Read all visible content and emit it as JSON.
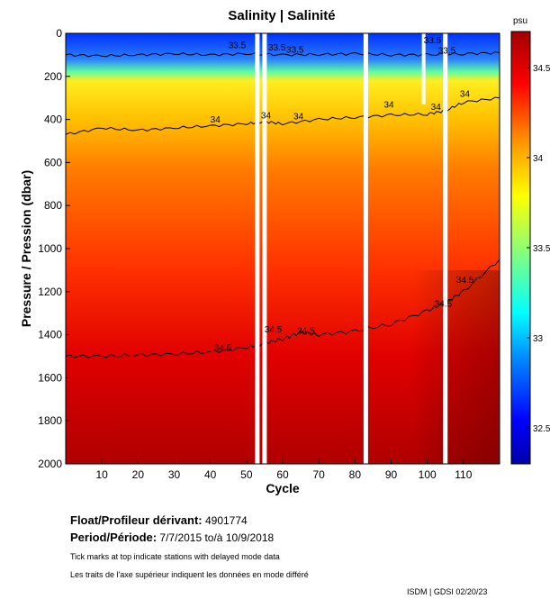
{
  "chart_data": {
    "type": "heatmap",
    "title": "Salinity | Salinité",
    "xlabel": "Cycle",
    "ylabel": "Pressure / Pression (dbar)",
    "xlim": [
      0,
      120
    ],
    "ylim": [
      2000,
      0
    ],
    "x_ticks": [
      10,
      20,
      30,
      40,
      50,
      60,
      70,
      80,
      90,
      100,
      110
    ],
    "y_ticks": [
      0,
      200,
      400,
      600,
      800,
      1000,
      1200,
      1400,
      1600,
      1800,
      2000
    ],
    "colorbar": {
      "unit": "psu",
      "range": [
        32.3,
        34.7
      ],
      "ticks": [
        {
          "value": 34.5,
          "label": "34.5"
        },
        {
          "value": 34.0,
          "label": "34"
        },
        {
          "value": 33.5,
          "label": "33.5"
        },
        {
          "value": 33.0,
          "label": "33"
        },
        {
          "value": 32.5,
          "label": "32.5"
        }
      ]
    },
    "missing_cycles": [
      53,
      55,
      83,
      105
    ],
    "partial_gap": {
      "cycle": 99,
      "from_dbar": 0,
      "to_dbar": 330
    },
    "contours": [
      {
        "level": 33.5,
        "label": "33.5",
        "x": [
          0,
          10,
          20,
          30,
          40,
          50,
          60,
          70,
          80,
          90,
          100,
          110,
          120
        ],
        "y": [
          100,
          105,
          100,
          95,
          100,
          95,
          100,
          98,
          95,
          100,
          100,
          95,
          90
        ]
      },
      {
        "level": 34.0,
        "label": "34",
        "x": [
          0,
          10,
          20,
          30,
          40,
          50,
          55,
          60,
          70,
          80,
          90,
          100,
          105,
          110,
          120
        ],
        "y": [
          470,
          440,
          450,
          440,
          430,
          420,
          410,
          420,
          400,
          390,
          380,
          375,
          360,
          320,
          300
        ]
      },
      {
        "level": 34.5,
        "label": "34.5",
        "x": [
          0,
          10,
          20,
          30,
          40,
          50,
          55,
          60,
          65,
          70,
          80,
          90,
          100,
          105,
          110,
          120
        ],
        "y": [
          1500,
          1500,
          1495,
          1490,
          1480,
          1460,
          1440,
          1420,
          1390,
          1400,
          1385,
          1350,
          1290,
          1250,
          1200,
          1050
        ]
      }
    ],
    "contour_labels": [
      {
        "text": "33.5",
        "x": 45,
        "y": 70
      },
      {
        "text": "33.5",
        "x": 56,
        "y": 80
      },
      {
        "text": "33.5",
        "x": 61,
        "y": 90
      },
      {
        "text": "33.5",
        "x": 99,
        "y": 45
      },
      {
        "text": "33.5",
        "x": 103,
        "y": 95
      },
      {
        "text": "34",
        "x": 40,
        "y": 415
      },
      {
        "text": "34",
        "x": 54,
        "y": 395
      },
      {
        "text": "34",
        "x": 63,
        "y": 400
      },
      {
        "text": "34",
        "x": 88,
        "y": 345
      },
      {
        "text": "34",
        "x": 101,
        "y": 355
      },
      {
        "text": "34",
        "x": 109,
        "y": 295
      },
      {
        "text": "34.5",
        "x": 41,
        "y": 1475
      },
      {
        "text": "34.5",
        "x": 55,
        "y": 1390
      },
      {
        "text": "34.5",
        "x": 64,
        "y": 1395
      },
      {
        "text": "34.5",
        "x": 102,
        "y": 1270
      },
      {
        "text": "34.5",
        "x": 108,
        "y": 1160
      }
    ]
  },
  "info": {
    "float_label": "Float/Profileur dérivant:",
    "float_id": "4901774",
    "period_label": "Period/Période:",
    "period_value": "7/7/2015  to/à  10/9/2018",
    "note_en": "Tick marks at top indicate stations with delayed mode data",
    "note_fr": "Les traits de l'axe supérieur indiquent les données en mode différé",
    "credit": "ISDM | GDSI  02/20/23"
  }
}
